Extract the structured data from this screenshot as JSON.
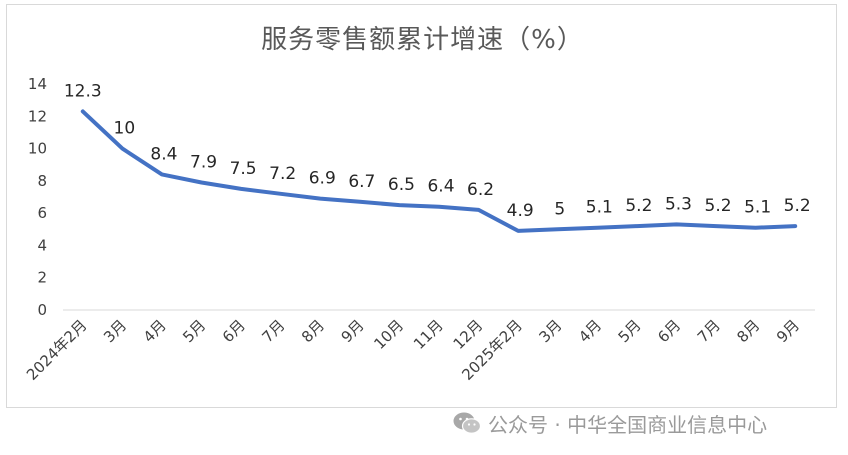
{
  "chart_data": {
    "type": "line",
    "title": "服务零售额累计增速（%）",
    "categories": [
      "2024年2月",
      "3月",
      "4月",
      "5月",
      "6月",
      "7月",
      "8月",
      "9月",
      "10月",
      "11月",
      "12月",
      "2025年2月",
      "3月",
      "4月",
      "5月",
      "6月",
      "7月",
      "8月",
      "9月"
    ],
    "series": [
      {
        "values": [
          12.3,
          10,
          8.4,
          7.9,
          7.5,
          7.2,
          6.9,
          6.7,
          6.5,
          6.4,
          6.2,
          4.9,
          5,
          5.1,
          5.2,
          5.3,
          5.2,
          5.1,
          5.2
        ],
        "labels": [
          "12.3",
          "10",
          "8.4",
          "7.9",
          "7.5",
          "7.2",
          "6.9",
          "6.7",
          "6.5",
          "6.4",
          "6.2",
          "4.9",
          "5",
          "5.1",
          "5.2",
          "5.3",
          "5.2",
          "5.1",
          "5.2"
        ],
        "color": "#4472c4"
      }
    ],
    "ylim": [
      0,
      14
    ],
    "yticks": [
      "0",
      "2",
      "4",
      "6",
      "8",
      "10",
      "12",
      "14"
    ],
    "grid": false,
    "legend": "none"
  },
  "watermark": {
    "icon": "wechat-icon",
    "text": "公众号 · 中华全国商业信息中心"
  }
}
